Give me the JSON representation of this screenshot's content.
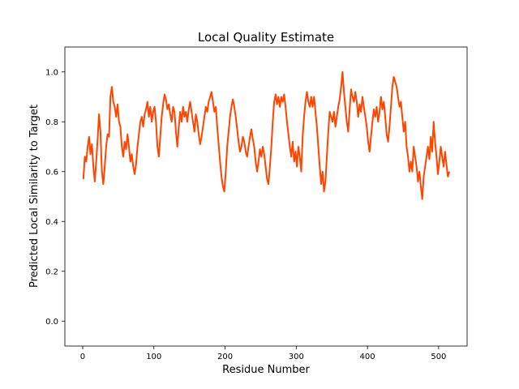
{
  "chart_data": {
    "type": "line",
    "title": "Local Quality Estimate",
    "xlabel": "Residue Number",
    "ylabel": "Predicted Local Similarity to Target",
    "xlim": [
      -25,
      540
    ],
    "ylim": [
      -0.1,
      1.1
    ],
    "xticks": [
      0,
      100,
      200,
      300,
      400,
      500
    ],
    "yticks": [
      0.0,
      0.2,
      0.4,
      0.6,
      0.8,
      1.0
    ],
    "xtick_labels": [
      "0",
      "100",
      "200",
      "300",
      "400",
      "500"
    ],
    "ytick_labels": [
      "0.0",
      "0.2",
      "0.4",
      "0.6",
      "0.8",
      "1.0"
    ],
    "grid": false,
    "series": [
      {
        "color": "#ff4500",
        "points": [
          [
            1,
            0.57
          ],
          [
            3,
            0.66
          ],
          [
            5,
            0.64
          ],
          [
            7,
            0.7
          ],
          [
            9,
            0.74
          ],
          [
            11,
            0.67
          ],
          [
            13,
            0.71
          ],
          [
            15,
            0.62
          ],
          [
            17,
            0.56
          ],
          [
            19,
            0.64
          ],
          [
            21,
            0.73
          ],
          [
            23,
            0.83
          ],
          [
            25,
            0.76
          ],
          [
            27,
            0.6
          ],
          [
            29,
            0.55
          ],
          [
            31,
            0.62
          ],
          [
            33,
            0.7
          ],
          [
            35,
            0.75
          ],
          [
            37,
            0.74
          ],
          [
            39,
            0.9
          ],
          [
            41,
            0.94
          ],
          [
            43,
            0.88
          ],
          [
            45,
            0.86
          ],
          [
            47,
            0.82
          ],
          [
            49,
            0.87
          ],
          [
            51,
            0.8
          ],
          [
            53,
            0.78
          ],
          [
            55,
            0.7
          ],
          [
            57,
            0.66
          ],
          [
            59,
            0.72
          ],
          [
            61,
            0.69
          ],
          [
            63,
            0.75
          ],
          [
            65,
            0.7
          ],
          [
            67,
            0.64
          ],
          [
            69,
            0.67
          ],
          [
            71,
            0.62
          ],
          [
            73,
            0.59
          ],
          [
            75,
            0.63
          ],
          [
            77,
            0.7
          ],
          [
            79,
            0.75
          ],
          [
            81,
            0.8
          ],
          [
            83,
            0.82
          ],
          [
            85,
            0.78
          ],
          [
            87,
            0.83
          ],
          [
            89,
            0.85
          ],
          [
            91,
            0.88
          ],
          [
            93,
            0.82
          ],
          [
            95,
            0.86
          ],
          [
            97,
            0.8
          ],
          [
            99,
            0.84
          ],
          [
            101,
            0.86
          ],
          [
            103,
            0.8
          ],
          [
            105,
            0.7
          ],
          [
            107,
            0.66
          ],
          [
            109,
            0.74
          ],
          [
            111,
            0.82
          ],
          [
            113,
            0.87
          ],
          [
            115,
            0.91
          ],
          [
            117,
            0.89
          ],
          [
            119,
            0.85
          ],
          [
            121,
            0.87
          ],
          [
            123,
            0.83
          ],
          [
            125,
            0.8
          ],
          [
            127,
            0.86
          ],
          [
            129,
            0.84
          ],
          [
            131,
            0.76
          ],
          [
            133,
            0.7
          ],
          [
            135,
            0.78
          ],
          [
            137,
            0.84
          ],
          [
            139,
            0.8
          ],
          [
            141,
            0.86
          ],
          [
            143,
            0.82
          ],
          [
            145,
            0.84
          ],
          [
            147,
            0.8
          ],
          [
            149,
            0.85
          ],
          [
            151,
            0.88
          ],
          [
            153,
            0.84
          ],
          [
            155,
            0.8
          ],
          [
            157,
            0.76
          ],
          [
            159,
            0.83
          ],
          [
            161,
            0.8
          ],
          [
            163,
            0.75
          ],
          [
            165,
            0.71
          ],
          [
            167,
            0.74
          ],
          [
            169,
            0.78
          ],
          [
            171,
            0.82
          ],
          [
            173,
            0.86
          ],
          [
            175,
            0.84
          ],
          [
            177,
            0.88
          ],
          [
            179,
            0.9
          ],
          [
            181,
            0.92
          ],
          [
            183,
            0.88
          ],
          [
            185,
            0.84
          ],
          [
            187,
            0.86
          ],
          [
            189,
            0.78
          ],
          [
            191,
            0.71
          ],
          [
            193,
            0.64
          ],
          [
            195,
            0.58
          ],
          [
            197,
            0.54
          ],
          [
            199,
            0.52
          ],
          [
            201,
            0.6
          ],
          [
            203,
            0.7
          ],
          [
            205,
            0.76
          ],
          [
            207,
            0.82
          ],
          [
            209,
            0.86
          ],
          [
            211,
            0.89
          ],
          [
            213,
            0.86
          ],
          [
            215,
            0.82
          ],
          [
            217,
            0.77
          ],
          [
            219,
            0.72
          ],
          [
            221,
            0.68
          ],
          [
            223,
            0.7
          ],
          [
            225,
            0.74
          ],
          [
            227,
            0.72
          ],
          [
            229,
            0.68
          ],
          [
            231,
            0.66
          ],
          [
            233,
            0.7
          ],
          [
            235,
            0.74
          ],
          [
            237,
            0.77
          ],
          [
            239,
            0.73
          ],
          [
            241,
            0.7
          ],
          [
            243,
            0.64
          ],
          [
            245,
            0.6
          ],
          [
            247,
            0.64
          ],
          [
            249,
            0.69
          ],
          [
            251,
            0.66
          ],
          [
            253,
            0.7
          ],
          [
            255,
            0.67
          ],
          [
            257,
            0.62
          ],
          [
            259,
            0.57
          ],
          [
            261,
            0.55
          ],
          [
            263,
            0.62
          ],
          [
            265,
            0.7
          ],
          [
            267,
            0.8
          ],
          [
            269,
            0.88
          ],
          [
            271,
            0.91
          ],
          [
            273,
            0.87
          ],
          [
            275,
            0.9
          ],
          [
            277,
            0.86
          ],
          [
            279,
            0.9
          ],
          [
            281,
            0.88
          ],
          [
            283,
            0.91
          ],
          [
            285,
            0.86
          ],
          [
            287,
            0.8
          ],
          [
            289,
            0.75
          ],
          [
            291,
            0.7
          ],
          [
            293,
            0.66
          ],
          [
            295,
            0.72
          ],
          [
            297,
            0.64
          ],
          [
            299,
            0.68
          ],
          [
            301,
            0.62
          ],
          [
            303,
            0.7
          ],
          [
            305,
            0.66
          ],
          [
            307,
            0.6
          ],
          [
            309,
            0.74
          ],
          [
            311,
            0.82
          ],
          [
            313,
            0.88
          ],
          [
            315,
            0.92
          ],
          [
            317,
            0.88
          ],
          [
            319,
            0.86
          ],
          [
            321,
            0.9
          ],
          [
            323,
            0.86
          ],
          [
            325,
            0.9
          ],
          [
            327,
            0.84
          ],
          [
            329,
            0.78
          ],
          [
            331,
            0.7
          ],
          [
            333,
            0.62
          ],
          [
            335,
            0.55
          ],
          [
            337,
            0.6
          ],
          [
            339,
            0.52
          ],
          [
            341,
            0.56
          ],
          [
            343,
            0.66
          ],
          [
            345,
            0.76
          ],
          [
            347,
            0.84
          ],
          [
            349,
            0.82
          ],
          [
            351,
            0.8
          ],
          [
            353,
            0.84
          ],
          [
            355,
            0.78
          ],
          [
            357,
            0.82
          ],
          [
            359,
            0.86
          ],
          [
            361,
            0.89
          ],
          [
            363,
            0.94
          ],
          [
            365,
            1.0
          ],
          [
            367,
            0.92
          ],
          [
            369,
            0.86
          ],
          [
            371,
            0.8
          ],
          [
            373,
            0.76
          ],
          [
            375,
            0.85
          ],
          [
            377,
            0.93
          ],
          [
            379,
            0.9
          ],
          [
            381,
            0.88
          ],
          [
            383,
            0.92
          ],
          [
            385,
            0.88
          ],
          [
            387,
            0.82
          ],
          [
            389,
            0.87
          ],
          [
            391,
            0.84
          ],
          [
            393,
            0.9
          ],
          [
            395,
            0.86
          ],
          [
            397,
            0.82
          ],
          [
            399,
            0.78
          ],
          [
            401,
            0.72
          ],
          [
            403,
            0.68
          ],
          [
            405,
            0.74
          ],
          [
            407,
            0.8
          ],
          [
            409,
            0.85
          ],
          [
            411,
            0.82
          ],
          [
            413,
            0.86
          ],
          [
            415,
            0.8
          ],
          [
            417,
            0.84
          ],
          [
            419,
            0.9
          ],
          [
            421,
            0.85
          ],
          [
            423,
            0.88
          ],
          [
            425,
            0.82
          ],
          [
            427,
            0.75
          ],
          [
            429,
            0.72
          ],
          [
            431,
            0.78
          ],
          [
            433,
            0.86
          ],
          [
            435,
            0.94
          ],
          [
            437,
            0.98
          ],
          [
            439,
            0.96
          ],
          [
            441,
            0.94
          ],
          [
            443,
            0.9
          ],
          [
            445,
            0.86
          ],
          [
            447,
            0.88
          ],
          [
            449,
            0.82
          ],
          [
            451,
            0.76
          ],
          [
            453,
            0.8
          ],
          [
            455,
            0.7
          ],
          [
            457,
            0.66
          ],
          [
            459,
            0.6
          ],
          [
            461,
            0.64
          ],
          [
            463,
            0.6
          ],
          [
            465,
            0.7
          ],
          [
            467,
            0.66
          ],
          [
            469,
            0.62
          ],
          [
            471,
            0.56
          ],
          [
            473,
            0.6
          ],
          [
            475,
            0.54
          ],
          [
            477,
            0.49
          ],
          [
            479,
            0.58
          ],
          [
            481,
            0.62
          ],
          [
            483,
            0.66
          ],
          [
            485,
            0.7
          ],
          [
            487,
            0.65
          ],
          [
            489,
            0.74
          ],
          [
            491,
            0.68
          ],
          [
            493,
            0.8
          ],
          [
            495,
            0.72
          ],
          [
            497,
            0.66
          ],
          [
            499,
            0.59
          ],
          [
            501,
            0.64
          ],
          [
            503,
            0.7
          ],
          [
            505,
            0.66
          ],
          [
            507,
            0.62
          ],
          [
            509,
            0.68
          ],
          [
            511,
            0.63
          ],
          [
            513,
            0.58
          ],
          [
            515,
            0.6
          ]
        ]
      }
    ]
  }
}
